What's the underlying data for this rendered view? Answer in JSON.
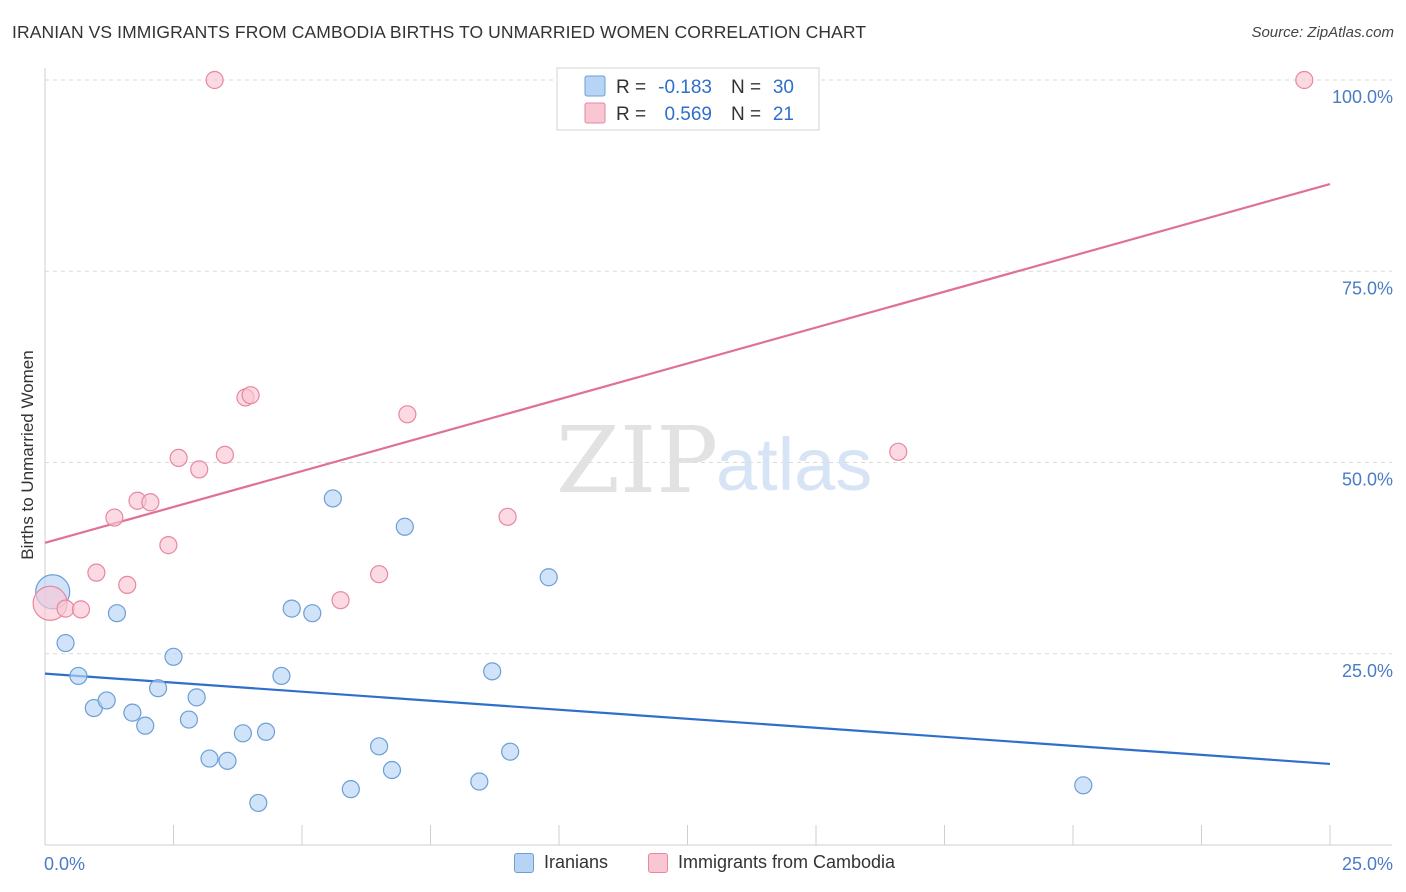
{
  "title": "IRANIAN VS IMMIGRANTS FROM CAMBODIA BIRTHS TO UNMARRIED WOMEN CORRELATION CHART",
  "source": "Source: ZipAtlas.com",
  "watermark": {
    "zip": "ZIP",
    "atlas": "atlas"
  },
  "colors": {
    "iranians_fill": "#b8d4f5",
    "iranians_stroke": "#6b9fd6",
    "iranians_line": "#2f6fcc",
    "cambodia_fill": "#f9c6d4",
    "cambodia_stroke": "#e8879f",
    "cambodia_line": "#e07098",
    "tick_label": "#4a7cc4",
    "grid": "#d9d9d9"
  },
  "legend": {
    "rows": [
      {
        "r_label": "R =",
        "r_value": "-0.183",
        "n_label": "N =",
        "n_value": "30"
      },
      {
        "r_label": "R =",
        "r_value": "0.569",
        "n_label": "N =",
        "n_value": "21"
      }
    ]
  },
  "bottom_legend": {
    "iranians": "Iranians",
    "cambodia": "Immigrants from Cambodia"
  },
  "chart_data": {
    "type": "scatter",
    "title": "IRANIAN VS IMMIGRANTS FROM CAMBODIA BIRTHS TO UNMARRIED WOMEN CORRELATION CHART",
    "xlabel": "",
    "ylabel": "Births to Unmarried Women",
    "xlim": [
      0,
      25
    ],
    "ylim": [
      0,
      100
    ],
    "x_tick_labels": [
      "0.0%",
      "25.0%"
    ],
    "y_ticks": [
      25,
      50,
      75,
      100
    ],
    "y_tick_labels": [
      "25.0%",
      "50.0%",
      "75.0%",
      "100.0%"
    ],
    "grid": true,
    "legend_position": "top-center",
    "series": [
      {
        "name": "Iranians",
        "r": -0.183,
        "n": 30,
        "trend": {
          "x": [
            0,
            25
          ],
          "y": [
            22.4,
            10.6
          ]
        },
        "points": [
          {
            "x": 0.15,
            "y": 33.1,
            "big": true
          },
          {
            "x": 0.4,
            "y": 26.4
          },
          {
            "x": 0.65,
            "y": 22.1
          },
          {
            "x": 0.95,
            "y": 17.9
          },
          {
            "x": 1.2,
            "y": 18.9
          },
          {
            "x": 1.4,
            "y": 30.3
          },
          {
            "x": 1.7,
            "y": 17.3
          },
          {
            "x": 1.95,
            "y": 15.6
          },
          {
            "x": 2.2,
            "y": 20.5
          },
          {
            "x": 2.5,
            "y": 24.6
          },
          {
            "x": 2.8,
            "y": 16.4
          },
          {
            "x": 2.95,
            "y": 19.3
          },
          {
            "x": 3.2,
            "y": 11.3
          },
          {
            "x": 3.55,
            "y": 11.0
          },
          {
            "x": 3.85,
            "y": 14.6
          },
          {
            "x": 4.15,
            "y": 5.5
          },
          {
            "x": 4.3,
            "y": 14.8
          },
          {
            "x": 4.6,
            "y": 22.1
          },
          {
            "x": 4.8,
            "y": 30.9
          },
          {
            "x": 5.2,
            "y": 30.3
          },
          {
            "x": 5.6,
            "y": 45.3
          },
          {
            "x": 5.95,
            "y": 7.3
          },
          {
            "x": 6.5,
            "y": 12.9
          },
          {
            "x": 6.75,
            "y": 9.8
          },
          {
            "x": 7.0,
            "y": 41.6
          },
          {
            "x": 8.45,
            "y": 8.3
          },
          {
            "x": 8.7,
            "y": 22.7
          },
          {
            "x": 9.05,
            "y": 12.2
          },
          {
            "x": 9.8,
            "y": 35.0
          },
          {
            "x": 20.2,
            "y": 7.8
          }
        ]
      },
      {
        "name": "Immigrants from Cambodia",
        "r": 0.569,
        "n": 21,
        "trend": {
          "x": [
            0,
            25
          ],
          "y": [
            39.5,
            86.4
          ]
        },
        "points": [
          {
            "x": 0.1,
            "y": 31.6,
            "big": true
          },
          {
            "x": 0.4,
            "y": 30.9
          },
          {
            "x": 0.7,
            "y": 30.8
          },
          {
            "x": 1.0,
            "y": 35.6
          },
          {
            "x": 1.35,
            "y": 42.8
          },
          {
            "x": 1.6,
            "y": 34.0
          },
          {
            "x": 1.8,
            "y": 45.0
          },
          {
            "x": 2.05,
            "y": 44.8
          },
          {
            "x": 2.4,
            "y": 39.2
          },
          {
            "x": 2.6,
            "y": 50.6
          },
          {
            "x": 3.0,
            "y": 49.1
          },
          {
            "x": 3.3,
            "y": 100.0
          },
          {
            "x": 3.5,
            "y": 51.0
          },
          {
            "x": 3.9,
            "y": 58.5
          },
          {
            "x": 4.0,
            "y": 58.8
          },
          {
            "x": 5.75,
            "y": 32.0
          },
          {
            "x": 6.5,
            "y": 35.4
          },
          {
            "x": 7.05,
            "y": 56.3
          },
          {
            "x": 9.0,
            "y": 42.9
          },
          {
            "x": 16.6,
            "y": 51.4
          },
          {
            "x": 24.5,
            "y": 100.0
          }
        ]
      }
    ]
  }
}
